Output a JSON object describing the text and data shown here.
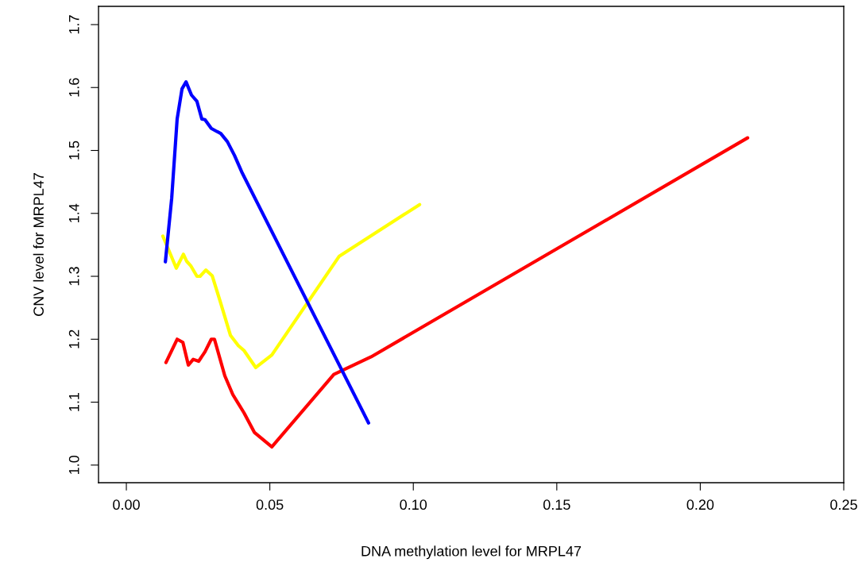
{
  "chart_data": {
    "type": "line",
    "xlabel": "DNA methylation level for MRPL47",
    "ylabel": "CNV level for MRPL47",
    "xlim": [
      -0.0097,
      0.25
    ],
    "ylim": [
      0.972,
      1.729
    ],
    "xticks": [
      {
        "value": 0,
        "label": "0.00"
      },
      0.05,
      {
        "value": 0.1,
        "label": "0.10"
      },
      0.15,
      {
        "value": 0.2,
        "label": "0.20"
      },
      0.25
    ],
    "yticks": [
      {
        "value": 1,
        "label": "1.0"
      },
      1.1,
      1.2,
      1.3,
      1.4,
      1.5,
      1.6,
      1.7
    ],
    "grid": false,
    "legend": false,
    "marker": "none",
    "line_style": "solid",
    "series": [
      {
        "color": "#ff0000",
        "x": [
          0.0138,
          0.0177,
          0.0197,
          0.0216,
          0.0233,
          0.0252,
          0.0274,
          0.0296,
          0.0307,
          0.0343,
          0.0371,
          0.041,
          0.0446,
          0.0507,
          0.0723,
          0.0853,
          0.2165
        ],
        "values": [
          1.163,
          1.2,
          1.195,
          1.159,
          1.168,
          1.165,
          1.18,
          1.2,
          1.2,
          1.142,
          1.112,
          1.083,
          1.052,
          1.029,
          1.144,
          1.172,
          1.52
        ]
      },
      {
        "color": "#ffff00",
        "x": [
          0.0127,
          0.0174,
          0.0199,
          0.021,
          0.0224,
          0.0246,
          0.0257,
          0.0277,
          0.0299,
          0.0327,
          0.0363,
          0.039,
          0.041,
          0.0451,
          0.0507,
          0.064,
          0.0742,
          0.1022
        ],
        "values": [
          1.364,
          1.313,
          1.335,
          1.324,
          1.317,
          1.3,
          1.3,
          1.31,
          1.301,
          1.26,
          1.206,
          1.19,
          1.182,
          1.155,
          1.175,
          1.264,
          1.332,
          1.414
        ]
      },
      {
        "color": "#0000ff",
        "x": [
          0.0136,
          0.0158,
          0.0177,
          0.0194,
          0.0208,
          0.0227,
          0.0246,
          0.0263,
          0.0274,
          0.0296,
          0.0316,
          0.0329,
          0.0352,
          0.0377,
          0.0404,
          0.0844
        ],
        "values": [
          1.323,
          1.424,
          1.55,
          1.598,
          1.609,
          1.588,
          1.578,
          1.55,
          1.549,
          1.535,
          1.53,
          1.527,
          1.514,
          1.492,
          1.464,
          1.067
        ]
      }
    ]
  }
}
